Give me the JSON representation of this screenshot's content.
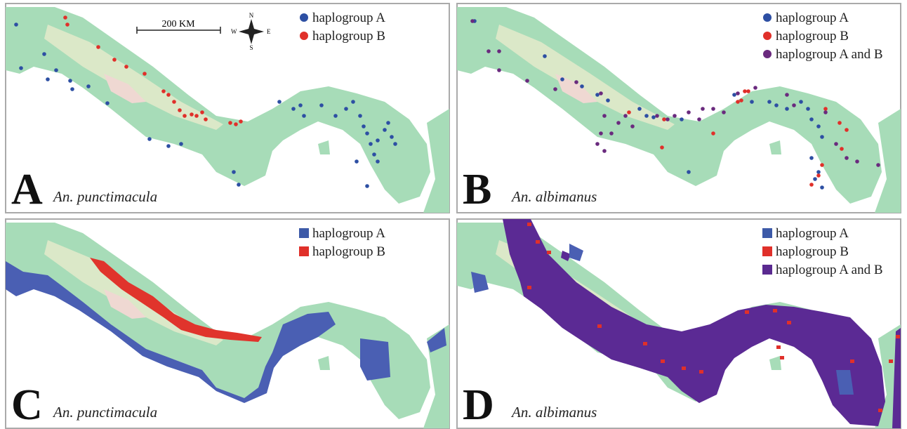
{
  "panels": [
    {
      "letter": "A",
      "species": "An. punctimacula",
      "legend": [
        "haplogroup A",
        "haplogroup B"
      ]
    },
    {
      "letter": "B",
      "species": "An. albimanus",
      "legend": [
        "haplogroup A",
        "haplogroup B",
        "haplogroup A and B"
      ]
    },
    {
      "letter": "C",
      "species": "An. punctimacula",
      "legend": [
        "haplogroup A",
        "haplogroup B"
      ]
    },
    {
      "letter": "D",
      "species": "An. albimanus",
      "legend": [
        "haplogroup A",
        "haplogroup B",
        "haplogroup A and B"
      ]
    }
  ],
  "scale_bar": {
    "label": "200 KM"
  },
  "compass": {
    "n": "N",
    "s": "S",
    "e": "E",
    "w": "W"
  }
}
